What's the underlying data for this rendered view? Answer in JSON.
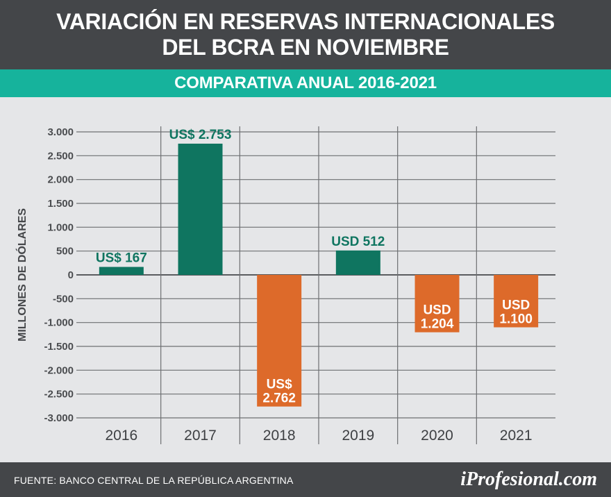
{
  "header": {
    "title_line1": "VARIACIÓN EN RESERVAS INTERNACIONALES",
    "title_line2": "DEL BCRA EN NOVIEMBRE"
  },
  "subtitle": "COMPARATIVA ANUAL 2016-2021",
  "footer": {
    "source": "FUENTE: BANCO CENTRAL DE LA REPÚBLICA ARGENTINA",
    "brand": "iProfesional.com"
  },
  "colors": {
    "positive": "#0f7560",
    "negative": "#dd6a2a",
    "header_bg": "#444649",
    "band_bg": "#16b39c",
    "plot_bg": "#e5e6e8"
  },
  "chart_data": {
    "type": "bar",
    "title": "COMPARATIVA ANUAL 2016-2021",
    "ylabel": "MILLONES DE DÓLARES",
    "xlabel": "",
    "categories": [
      "2016",
      "2017",
      "2018",
      "2019",
      "2020",
      "2021"
    ],
    "values": [
      167,
      2753,
      -2762,
      512,
      -1204,
      -1100
    ],
    "data_labels": [
      [
        "US$ 167"
      ],
      [
        "US$ 2.753"
      ],
      [
        "US$",
        "2.762"
      ],
      [
        "USD 512"
      ],
      [
        "USD",
        "1.204"
      ],
      [
        "USD",
        "1.100"
      ]
    ],
    "ylim": [
      -3000,
      3000
    ],
    "yticks": [
      3000,
      2500,
      2000,
      1500,
      1000,
      500,
      0,
      -500,
      -1000,
      -1500,
      -2000,
      -2500,
      -3000
    ],
    "ytick_labels": [
      "3.000",
      "2.500",
      "2.000",
      "1.500",
      "1.000",
      "500",
      "0",
      "-500",
      "-1.000",
      "-1.500",
      "-2.000",
      "-2.500",
      "-3.000"
    ],
    "grid": true,
    "legend": "none"
  }
}
